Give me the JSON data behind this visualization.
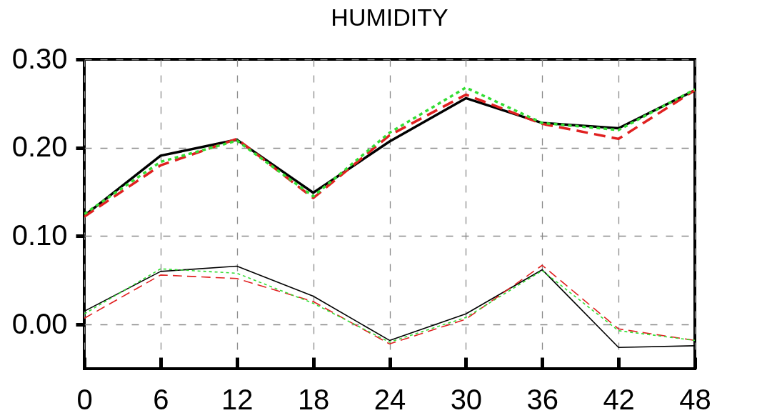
{
  "chart_data": {
    "type": "line",
    "title": "HUMIDITY",
    "x": [
      0,
      6,
      12,
      18,
      24,
      30,
      36,
      42,
      48
    ],
    "xlim": [
      0,
      48
    ],
    "xticks": [
      0,
      6,
      12,
      18,
      24,
      30,
      36,
      42,
      48
    ],
    "ylim": [
      -0.05,
      0.3
    ],
    "yticks": [
      {
        "value": 0,
        "label": "0.00"
      },
      {
        "value": 0.1,
        "label": "0.10"
      },
      {
        "value": 0.2,
        "label": "0.20"
      },
      {
        "value": 0.3,
        "label": "0.30"
      }
    ],
    "grid": true,
    "series": [
      {
        "color": "#000000",
        "line_style": "solid",
        "values": [
          0.123,
          0.191,
          0.209,
          0.149,
          0.207,
          0.256,
          0.228,
          0.222,
          0.265
        ]
      },
      {
        "color": "#e02020",
        "line_style": "dashed",
        "values": [
          0.122,
          0.18,
          0.21,
          0.143,
          0.214,
          0.26,
          0.227,
          0.21,
          0.265
        ]
      },
      {
        "color": "#33dd33",
        "line_style": "dotted",
        "values": [
          0.125,
          0.184,
          0.208,
          0.145,
          0.217,
          0.268,
          0.228,
          0.22,
          0.266
        ]
      },
      {
        "color": "#000000",
        "line_style": "solid",
        "values": [
          0.015,
          0.06,
          0.066,
          0.032,
          -0.018,
          0.012,
          0.062,
          -0.026,
          -0.024
        ]
      },
      {
        "color": "#e02020",
        "line_style": "dashed",
        "values": [
          0.007,
          0.056,
          0.052,
          0.026,
          -0.022,
          0.006,
          0.067,
          -0.005,
          -0.018
        ]
      },
      {
        "color": "#33dd33",
        "line_style": "dotted",
        "values": [
          0.012,
          0.063,
          0.058,
          0.024,
          -0.02,
          0.008,
          0.061,
          -0.007,
          -0.018
        ]
      }
    ]
  }
}
